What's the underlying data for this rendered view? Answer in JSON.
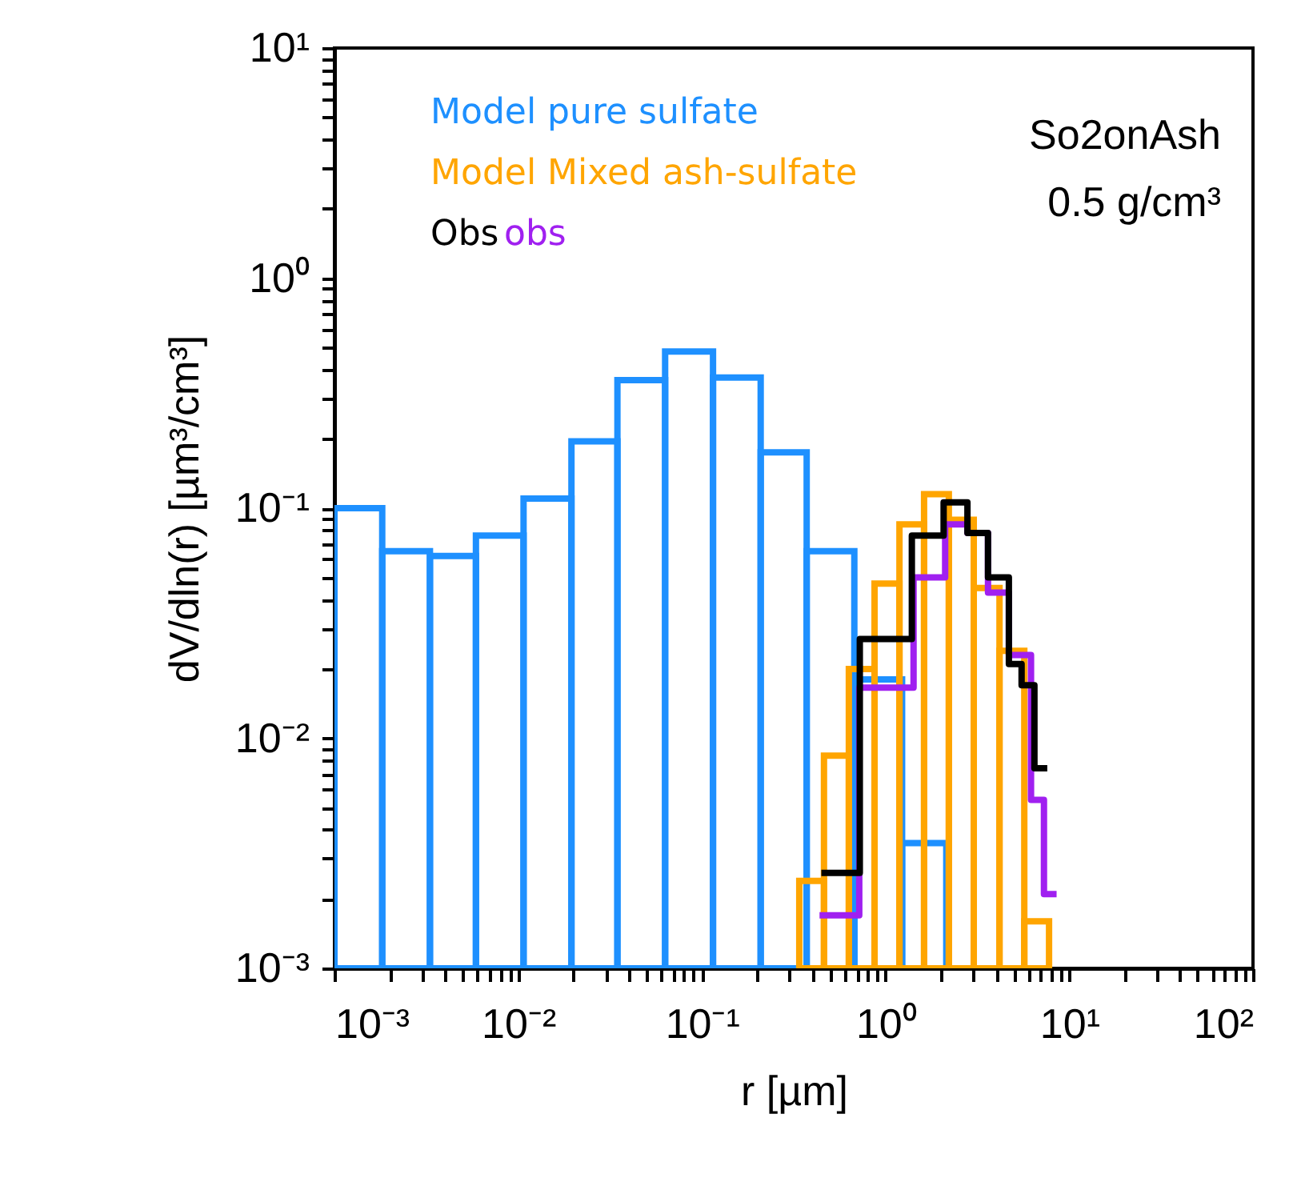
{
  "chart_data": {
    "type": "histogram",
    "xlabel": "r [µm]",
    "ylabel": "dV/dln(r) [µm³/cm³]",
    "log": "xy",
    "grid": false,
    "legend": "top left",
    "xlim": [
      0.001,
      100
    ],
    "ylim": [
      0.001,
      10
    ],
    "xticks": [
      {
        "value": 0.001,
        "label": "10⁻³"
      },
      {
        "value": 0.002,
        "label": null
      },
      {
        "value": 0.003,
        "label": null
      },
      {
        "value": 0.004,
        "label": null
      },
      {
        "value": 0.005,
        "label": null
      },
      {
        "value": 0.006,
        "label": null
      },
      {
        "value": 0.007,
        "label": null
      },
      {
        "value": 0.008,
        "label": null
      },
      {
        "value": 0.009,
        "label": null
      },
      {
        "value": 0.01,
        "label": "10⁻²"
      },
      {
        "value": 0.02,
        "label": null
      },
      {
        "value": 0.03,
        "label": null
      },
      {
        "value": 0.04,
        "label": null
      },
      {
        "value": 0.05,
        "label": null
      },
      {
        "value": 0.06,
        "label": null
      },
      {
        "value": 0.07,
        "label": null
      },
      {
        "value": 0.08,
        "label": null
      },
      {
        "value": 0.09,
        "label": null
      },
      {
        "value": 0.1,
        "label": "10⁻¹"
      },
      {
        "value": 0.2,
        "label": null
      },
      {
        "value": 0.3,
        "label": null
      },
      {
        "value": 0.4,
        "label": null
      },
      {
        "value": 0.5,
        "label": null
      },
      {
        "value": 0.6,
        "label": null
      },
      {
        "value": 0.7,
        "label": null
      },
      {
        "value": 0.8,
        "label": null
      },
      {
        "value": 0.9,
        "label": null
      },
      {
        "value": 1,
        "label": "10⁰"
      },
      {
        "value": 2,
        "label": null
      },
      {
        "value": 3,
        "label": null
      },
      {
        "value": 4,
        "label": null
      },
      {
        "value": 5,
        "label": null
      },
      {
        "value": 6,
        "label": null
      },
      {
        "value": 7,
        "label": null
      },
      {
        "value": 8,
        "label": null
      },
      {
        "value": 9,
        "label": null
      },
      {
        "value": 10,
        "label": "10¹"
      },
      {
        "value": 20,
        "label": null
      },
      {
        "value": 30,
        "label": null
      },
      {
        "value": 40,
        "label": null
      },
      {
        "value": 50,
        "label": null
      },
      {
        "value": 60,
        "label": null
      },
      {
        "value": 70,
        "label": null
      },
      {
        "value": 80,
        "label": null
      },
      {
        "value": 90,
        "label": null
      },
      {
        "value": 100,
        "label": "10²"
      }
    ],
    "yticks": [
      {
        "value": 0.001,
        "label": "10⁻³"
      },
      {
        "value": 0.002,
        "label": null
      },
      {
        "value": 0.003,
        "label": null
      },
      {
        "value": 0.004,
        "label": null
      },
      {
        "value": 0.005,
        "label": null
      },
      {
        "value": 0.006,
        "label": null
      },
      {
        "value": 0.007,
        "label": null
      },
      {
        "value": 0.008,
        "label": null
      },
      {
        "value": 0.009,
        "label": null
      },
      {
        "value": 0.01,
        "label": "10⁻²"
      },
      {
        "value": 0.02,
        "label": null
      },
      {
        "value": 0.03,
        "label": null
      },
      {
        "value": 0.04,
        "label": null
      },
      {
        "value": 0.05,
        "label": null
      },
      {
        "value": 0.06,
        "label": null
      },
      {
        "value": 0.07,
        "label": null
      },
      {
        "value": 0.08,
        "label": null
      },
      {
        "value": 0.09,
        "label": null
      },
      {
        "value": 0.1,
        "label": "10⁻¹"
      },
      {
        "value": 0.2,
        "label": null
      },
      {
        "value": 0.3,
        "label": null
      },
      {
        "value": 0.4,
        "label": null
      },
      {
        "value": 0.5,
        "label": null
      },
      {
        "value": 0.6,
        "label": null
      },
      {
        "value": 0.7,
        "label": null
      },
      {
        "value": 0.8,
        "label": null
      },
      {
        "value": 0.9,
        "label": null
      },
      {
        "value": 1,
        "label": "10⁰"
      },
      {
        "value": 2,
        "label": null
      },
      {
        "value": 3,
        "label": null
      },
      {
        "value": 4,
        "label": null
      },
      {
        "value": 5,
        "label": null
      },
      {
        "value": 6,
        "label": null
      },
      {
        "value": 7,
        "label": null
      },
      {
        "value": 8,
        "label": null
      },
      {
        "value": 9,
        "label": null
      },
      {
        "value": 10,
        "label": "10¹"
      }
    ],
    "annotations": [
      "So2onAsh",
      "0.5 g/cm³"
    ],
    "bins": [
      0.001,
      0.00182,
      0.00331,
      0.00589,
      0.0107,
      0.0195,
      0.0347,
      0.0631,
      0.115,
      0.209,
      0.372,
      0.676,
      1.23,
      2.14
    ],
    "series": [
      {
        "name": "Model pure sulfate",
        "color": "#1e90ff",
        "values": [
          0.1,
          0.065,
          0.062,
          0.076,
          0.11,
          0.195,
          0.36,
          0.48,
          0.37,
          0.175,
          0.065,
          0.018,
          0.0035
        ]
      },
      {
        "name": "Model Mixed ash-sulfate",
        "color": "#ffa500",
        "bins": [
          0.339,
          0.462,
          0.631,
          0.871,
          1.19,
          1.62,
          2.21,
          3.02,
          4.17,
          5.69,
          7.76
        ],
        "values": [
          0.0024,
          0.0084,
          0.02,
          0.047,
          0.085,
          0.115,
          0.089,
          0.045,
          0.024,
          0.0016
        ]
      },
      {
        "name": "obs",
        "type": "step",
        "color": "#a020f0",
        "x": [
          0.437,
          0.719,
          1.42,
          2.11,
          2.79,
          3.61,
          4.69,
          6.19,
          7.28,
          8.53
        ],
        "values": [
          0.0017,
          0.0166,
          0.05,
          0.085,
          0.078,
          0.043,
          0.023,
          0.0054,
          0.0021,
          0.0021
        ]
      },
      {
        "name": "Obs",
        "type": "step",
        "color": "#000000",
        "x": [
          0.447,
          0.724,
          1.39,
          2.07,
          2.79,
          3.61,
          4.69,
          5.5,
          6.46,
          7.59
        ],
        "values": [
          0.0026,
          0.027,
          0.076,
          0.106,
          0.078,
          0.05,
          0.021,
          0.017,
          0.0074,
          0.0074
        ]
      }
    ]
  }
}
